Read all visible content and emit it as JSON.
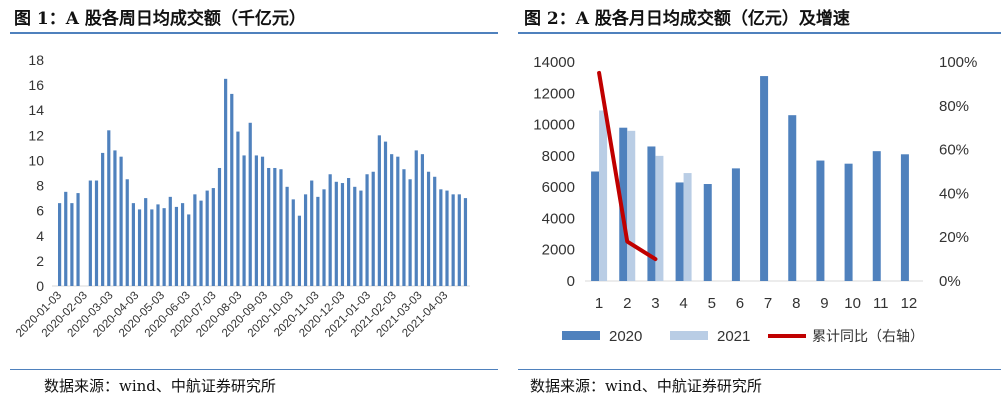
{
  "panel1": {
    "title": "图 1：A 股各周日均成交额（千亿元）",
    "source": "数据来源：wind、中航证券研究所"
  },
  "panel2": {
    "title": "图 2：A 股各月日均成交额（亿元）及增速",
    "source": "数据来源：wind、中航证券研究所"
  },
  "chart_data": [
    {
      "type": "bar",
      "title": "A 股各周日均成交额（千亿元）",
      "ylim": [
        0,
        18
      ],
      "yticks": [
        "0",
        "2",
        "4",
        "6",
        "8",
        "10",
        "12",
        "14",
        "16",
        "18"
      ],
      "xticks": [
        "2020-01-03",
        "2020-02-03",
        "2020-03-03",
        "2020-04-03",
        "2020-05-03",
        "2020-06-03",
        "2020-07-03",
        "2020-08-03",
        "2020-09-03",
        "2020-10-03",
        "2020-11-03",
        "2020-12-03",
        "2021-01-03",
        "2021-02-03",
        "2021-03-03",
        "2021-04-03"
      ],
      "color": "#4f81bd",
      "values": [
        6.6,
        7.5,
        6.6,
        7.4,
        0,
        8.4,
        8.4,
        10.6,
        12.4,
        10.8,
        10.3,
        8.5,
        6.6,
        6.1,
        7.0,
        6.1,
        6.5,
        6.2,
        7.1,
        6.3,
        6.6,
        5.7,
        7.3,
        6.8,
        7.6,
        7.8,
        9.4,
        16.5,
        15.3,
        12.3,
        10.4,
        13.0,
        10.4,
        10.3,
        9.4,
        9.4,
        9.3,
        7.9,
        6.9,
        5.6,
        7.3,
        8.4,
        7.1,
        7.7,
        8.9,
        8.3,
        8.2,
        8.6,
        7.9,
        7.6,
        8.9,
        9.1,
        12.0,
        11.5,
        10.5,
        10.3,
        9.3,
        8.5,
        10.8,
        10.5,
        9.1,
        8.7,
        7.7,
        7.6,
        7.3,
        7.3,
        7.0
      ]
    },
    {
      "type": "bar",
      "title": "A 股各月日均成交额（亿元）及增速",
      "categories": [
        "1",
        "2",
        "3",
        "4",
        "5",
        "6",
        "7",
        "8",
        "9",
        "10",
        "11",
        "12"
      ],
      "ylim": [
        0,
        14000
      ],
      "yticks": [
        "0",
        "2000",
        "4000",
        "6000",
        "8000",
        "10000",
        "12000",
        "14000"
      ],
      "y2lim": [
        0,
        100
      ],
      "y2ticks": [
        "0%",
        "20%",
        "40%",
        "60%",
        "80%",
        "100%"
      ],
      "series": [
        {
          "name": "2020",
          "kind": "bar",
          "color": "#4f81bd",
          "values": [
            7000,
            9800,
            8600,
            6300,
            6200,
            7200,
            13100,
            10600,
            7700,
            7500,
            8300,
            8100
          ]
        },
        {
          "name": "2021",
          "kind": "bar",
          "color": "#b9cde5",
          "values": [
            10900,
            9600,
            8000,
            6900,
            null,
            null,
            null,
            null,
            null,
            null,
            null,
            null
          ]
        },
        {
          "name": "累计同比（右轴）",
          "kind": "line",
          "axis": "right",
          "color": "#c00000",
          "values": [
            95,
            18,
            10,
            null,
            null,
            null,
            null,
            null,
            null,
            null,
            null,
            null
          ]
        }
      ],
      "legend_position": "bottom"
    }
  ]
}
